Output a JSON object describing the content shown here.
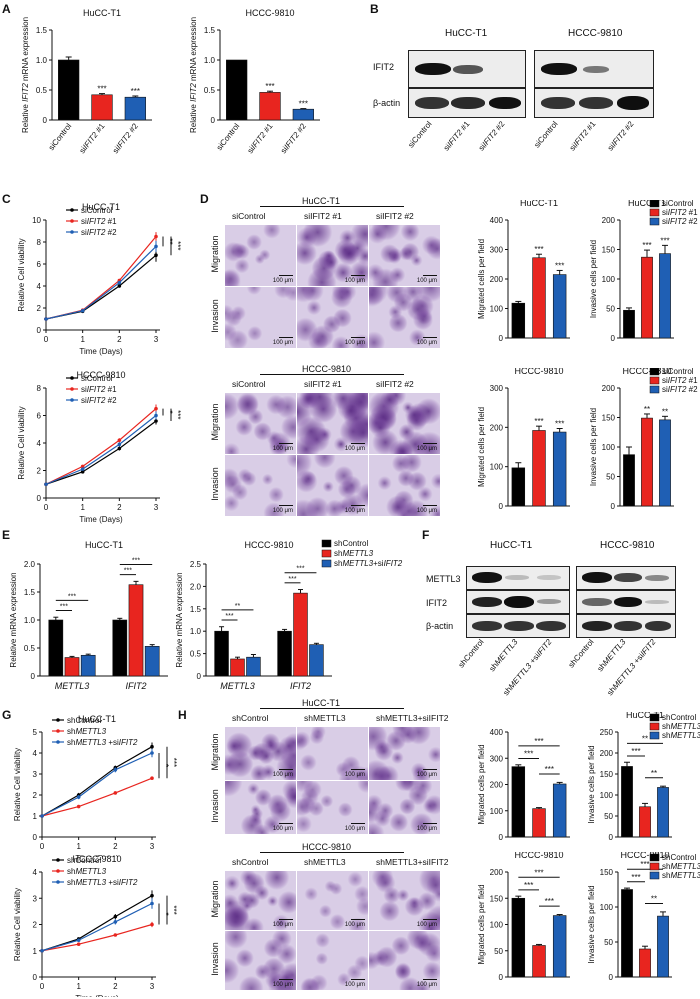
{
  "colors": {
    "black": "#000000",
    "red": "#e8251f",
    "blue": "#1f5fb4",
    "purple": "#6a3d9a"
  },
  "panel_letters": [
    "A",
    "B",
    "C",
    "D",
    "E",
    "F",
    "G",
    "H"
  ],
  "si_groups": {
    "control": "siControl",
    "si1": "siIFIT2 #1",
    "si2": "siIFIT2 #2"
  },
  "sh_groups": {
    "control": "shControl",
    "sh": "shMETTL3",
    "combo": "shMETTL3+siIFIT2"
  },
  "B": {
    "cells": [
      "HuCC-T1",
      "HCCC-9810"
    ],
    "rows": [
      "IFIT2",
      "β-actin"
    ],
    "lanes": [
      "siControl",
      "siIFIT2 #1",
      "siIFIT2 #2"
    ]
  },
  "F": {
    "cells": [
      "HuCC-T1",
      "HCCC-9810"
    ],
    "rows": [
      "METTL3",
      "IFIT2",
      "β-actin"
    ],
    "lanes": [
      "shControl",
      "shMETTL3",
      "shMETTL3 +siIFIT2"
    ]
  },
  "D": {
    "cells": [
      "HuCC-T1",
      "HCCC-9810"
    ],
    "rows": [
      "Migration",
      "Invasion"
    ],
    "cols": [
      "siControl",
      "siIFIT2 #1",
      "siIFIT2 #2"
    ],
    "scale": "100 μm"
  },
  "H": {
    "cells": [
      "HuCC-T1",
      "HCCC-9810"
    ],
    "rows": [
      "Migration",
      "Invasion"
    ],
    "cols": [
      "shControl",
      "shMETTL3",
      "shMETTL3+siIFIT2"
    ],
    "scale": "100 μm"
  },
  "chart_data": [
    {
      "id": "A1",
      "panel": "A",
      "type": "bar",
      "title": "HuCC-T1",
      "ylabel": "Relative IFIT2 mRNA expression",
      "ylim": [
        0,
        1.5
      ],
      "yticks": [
        0,
        0.5,
        1.0,
        1.5
      ],
      "categories": [
        "siControl",
        "siIFIT2 #1",
        "siIFIT2 #2"
      ],
      "values": [
        1.0,
        0.42,
        0.38
      ],
      "errors": [
        0.05,
        0.02,
        0.02
      ],
      "colors": [
        "#000000",
        "#e8251f",
        "#1f5fb4"
      ],
      "stars": [
        "",
        "***",
        "***"
      ]
    },
    {
      "id": "A2",
      "panel": "A",
      "type": "bar",
      "title": "HCCC-9810",
      "ylabel": "Relative IFIT2 mRNA expression",
      "ylim": [
        0,
        1.5
      ],
      "yticks": [
        0,
        0.5,
        1.0,
        1.5
      ],
      "categories": [
        "siControl",
        "siIFIT2 #1",
        "siIFIT2 #2"
      ],
      "values": [
        1.0,
        0.46,
        0.18
      ],
      "errors": [
        0.0,
        0.02,
        0.01
      ],
      "colors": [
        "#000000",
        "#e8251f",
        "#1f5fb4"
      ],
      "stars": [
        "",
        "***",
        "***"
      ]
    },
    {
      "id": "C1",
      "panel": "C",
      "type": "line",
      "title": "HuCC-T1",
      "xlabel": "Time (Days)",
      "ylabel": "Relative Cell viability",
      "xlim": [
        0,
        3
      ],
      "ylim": [
        0,
        10
      ],
      "xticks": [
        0,
        1,
        2,
        3
      ],
      "yticks": [
        0,
        2,
        4,
        6,
        8,
        10
      ],
      "x": [
        0,
        1,
        2,
        3
      ],
      "series": [
        {
          "name": "siControl",
          "values": [
            1,
            1.7,
            4.0,
            6.8
          ],
          "err": [
            0,
            0.1,
            0.15,
            0.6
          ],
          "color": "#000000"
        },
        {
          "name": "siIFIT2 #1",
          "values": [
            1,
            1.8,
            4.5,
            8.5
          ],
          "err": [
            0,
            0.1,
            0.15,
            0.4
          ],
          "color": "#e8251f"
        },
        {
          "name": "siIFIT2 #2",
          "values": [
            1,
            1.75,
            4.3,
            7.6
          ],
          "err": [
            0,
            0.1,
            0.15,
            0.5
          ],
          "color": "#1f5fb4"
        }
      ],
      "stars": [
        "**",
        "***"
      ]
    },
    {
      "id": "C2",
      "panel": "C",
      "type": "line",
      "title": "HCCC-9810",
      "xlabel": "Time (Days)",
      "ylabel": "Relative Cell viability",
      "xlim": [
        0,
        3
      ],
      "ylim": [
        0,
        8
      ],
      "xticks": [
        0,
        1,
        2,
        3
      ],
      "yticks": [
        0,
        2,
        4,
        6,
        8
      ],
      "x": [
        0,
        1,
        2,
        3
      ],
      "series": [
        {
          "name": "siControl",
          "values": [
            1,
            1.9,
            3.6,
            5.6
          ],
          "err": [
            0,
            0.1,
            0.15,
            0.25
          ],
          "color": "#000000"
        },
        {
          "name": "siIFIT2 #1",
          "values": [
            1,
            2.3,
            4.2,
            6.5
          ],
          "err": [
            0,
            0.1,
            0.15,
            0.3
          ],
          "color": "#e8251f"
        },
        {
          "name": "siIFIT2 #2",
          "values": [
            1,
            2.1,
            3.9,
            6.0
          ],
          "err": [
            0,
            0.1,
            0.15,
            0.3
          ],
          "color": "#1f5fb4"
        }
      ],
      "stars": [
        "*",
        "***"
      ]
    },
    {
      "id": "D1",
      "panel": "D",
      "type": "bar",
      "title": "HuCC-T1",
      "ylabel": "Migrated cells per field",
      "ylim": [
        0,
        400
      ],
      "yticks": [
        0,
        100,
        200,
        300,
        400
      ],
      "categories": [
        "siControl",
        "siIFIT2 #1",
        "siIFIT2 #2"
      ],
      "values": [
        118,
        272,
        215
      ],
      "errors": [
        6,
        12,
        14
      ],
      "colors": [
        "#000000",
        "#e8251f",
        "#1f5fb4"
      ],
      "stars": [
        "",
        "***",
        "***"
      ]
    },
    {
      "id": "D2",
      "panel": "D",
      "type": "bar",
      "title": "HuCC-T1",
      "ylabel": "Invasive cells per field",
      "ylim": [
        0,
        200
      ],
      "yticks": [
        0,
        50,
        100,
        150,
        200
      ],
      "categories": [
        "siControl",
        "siIFIT2 #1",
        "siIFIT2 #2"
      ],
      "values": [
        47,
        137,
        143
      ],
      "errors": [
        4,
        12,
        14
      ],
      "colors": [
        "#000000",
        "#e8251f",
        "#1f5fb4"
      ],
      "stars": [
        "",
        "***",
        "***"
      ],
      "legend": [
        "siControl",
        "siIFIT2 #1",
        "siIFIT2 #2"
      ]
    },
    {
      "id": "D3",
      "panel": "D",
      "type": "bar",
      "title": "HCCC-9810",
      "ylabel": "Migrated cells per field",
      "ylim": [
        0,
        300
      ],
      "yticks": [
        0,
        100,
        200,
        300
      ],
      "categories": [
        "siControl",
        "siIFIT2 #1",
        "siIFIT2 #2"
      ],
      "values": [
        97,
        192,
        188
      ],
      "errors": [
        13,
        11,
        9
      ],
      "colors": [
        "#000000",
        "#e8251f",
        "#1f5fb4"
      ],
      "stars": [
        "",
        "***",
        "***"
      ]
    },
    {
      "id": "D4",
      "panel": "D",
      "type": "bar",
      "title": "HCCC-9810",
      "ylabel": "Invasive cells per field",
      "ylim": [
        0,
        200
      ],
      "yticks": [
        0,
        50,
        100,
        150,
        200
      ],
      "categories": [
        "siControl",
        "siIFIT2 #1",
        "siIFIT2 #2"
      ],
      "values": [
        87,
        149,
        146
      ],
      "errors": [
        13,
        7,
        6
      ],
      "colors": [
        "#000000",
        "#e8251f",
        "#1f5fb4"
      ],
      "stars": [
        "",
        "**",
        "**"
      ],
      "legend": [
        "siControl",
        "siIFIT2 #1",
        "siIFIT2 #2"
      ]
    },
    {
      "id": "E1",
      "panel": "E",
      "type": "bar",
      "title": "HuCC-T1",
      "ylabel": "Relative mRNA expression",
      "ylim": [
        0,
        2.0
      ],
      "yticks": [
        0,
        0.5,
        1.0,
        1.5,
        2.0
      ],
      "categories": [
        "METTL3",
        "IFIT2"
      ],
      "series": [
        {
          "name": "shControl",
          "values": [
            1.0,
            1.0
          ],
          "err": [
            0.05,
            0.03
          ],
          "color": "#000000"
        },
        {
          "name": "shMETTL3",
          "values": [
            0.33,
            1.63
          ],
          "err": [
            0.02,
            0.06
          ],
          "color": "#e8251f"
        },
        {
          "name": "shMETTL3+siIFIT2",
          "values": [
            0.37,
            0.53
          ],
          "err": [
            0.02,
            0.03
          ],
          "color": "#1f5fb4"
        }
      ],
      "brackets": [
        "***",
        "***",
        "***",
        "***"
      ]
    },
    {
      "id": "E2",
      "panel": "E",
      "type": "bar",
      "title": "HCCC-9810",
      "ylabel": "Relative mRNA expression",
      "ylim": [
        0,
        2.5
      ],
      "yticks": [
        0,
        0.5,
        1.0,
        1.5,
        2.0,
        2.5
      ],
      "categories": [
        "METTL3",
        "IFIT2"
      ],
      "series": [
        {
          "name": "shControl",
          "values": [
            1.0,
            1.0
          ],
          "err": [
            0.1,
            0.04
          ],
          "color": "#000000"
        },
        {
          "name": "shMETTL3",
          "values": [
            0.38,
            1.85
          ],
          "err": [
            0.04,
            0.08
          ],
          "color": "#e8251f"
        },
        {
          "name": "shMETTL3+siIFIT2",
          "values": [
            0.42,
            0.7
          ],
          "err": [
            0.06,
            0.03
          ],
          "color": "#1f5fb4"
        }
      ],
      "brackets": [
        "***",
        "**",
        "***",
        "***"
      ],
      "legend": [
        "shControl",
        "shMETTL3",
        "shMETTL3+siIFIT2"
      ]
    },
    {
      "id": "G1",
      "panel": "G",
      "type": "line",
      "title": "HuCC-T1",
      "xlabel": "Time (Days)",
      "ylabel": "Relative Cell viability",
      "xlim": [
        0,
        3
      ],
      "ylim": [
        0,
        5
      ],
      "xticks": [
        0,
        1,
        2,
        3
      ],
      "yticks": [
        0,
        1,
        2,
        3,
        4,
        5
      ],
      "x": [
        0,
        1,
        2,
        3
      ],
      "series": [
        {
          "name": "shControl",
          "values": [
            1,
            2.0,
            3.3,
            4.3
          ],
          "err": [
            0,
            0.1,
            0.1,
            0.2
          ],
          "color": "#000000"
        },
        {
          "name": "shMETTL3",
          "values": [
            1,
            1.45,
            2.1,
            2.8
          ],
          "err": [
            0,
            0.05,
            0.05,
            0.08
          ],
          "color": "#e8251f"
        },
        {
          "name": "shMETTL3 +siIFIT2",
          "values": [
            1,
            1.9,
            3.2,
            4.0
          ],
          "err": [
            0,
            0.1,
            0.12,
            0.2
          ],
          "color": "#1f5fb4"
        }
      ],
      "stars": [
        "*",
        "***"
      ]
    },
    {
      "id": "G2",
      "panel": "G",
      "type": "line",
      "title": "HCCC-9810",
      "xlabel": "Time (Days)",
      "ylabel": "Relative Cell viability",
      "xlim": [
        0,
        3
      ],
      "ylim": [
        0,
        4
      ],
      "xticks": [
        0,
        1,
        2,
        3
      ],
      "yticks": [
        0,
        1,
        2,
        3,
        4
      ],
      "x": [
        0,
        1,
        2,
        3
      ],
      "series": [
        {
          "name": "shControl",
          "values": [
            1,
            1.45,
            2.3,
            3.1
          ],
          "err": [
            0,
            0.05,
            0.1,
            0.2
          ],
          "color": "#000000"
        },
        {
          "name": "shMETTL3",
          "values": [
            1,
            1.25,
            1.6,
            2.0
          ],
          "err": [
            0,
            0.05,
            0.05,
            0.1
          ],
          "color": "#e8251f"
        },
        {
          "name": "shMETTL3 +siIFIT2",
          "values": [
            1,
            1.4,
            2.1,
            2.8
          ],
          "err": [
            0,
            0.05,
            0.1,
            0.2
          ],
          "color": "#1f5fb4"
        }
      ],
      "stars": [
        "*",
        "***"
      ]
    },
    {
      "id": "H1",
      "panel": "H",
      "type": "bar",
      "title": "",
      "ylabel": "Migrated cells per field",
      "ylim": [
        0,
        400
      ],
      "yticks": [
        0,
        100,
        200,
        300,
        400
      ],
      "categories": [
        "shControl",
        "shMETTL3",
        "shMETTL3+siIFIT2"
      ],
      "values": [
        268,
        108,
        202
      ],
      "errors": [
        7,
        4,
        6
      ],
      "colors": [
        "#000000",
        "#e8251f",
        "#1f5fb4"
      ],
      "brackets": [
        "***",
        "***",
        "***"
      ]
    },
    {
      "id": "H2",
      "panel": "H",
      "type": "bar",
      "title": "HuCC-T1",
      "ylabel": "Invasive cells per field",
      "ylim": [
        0,
        250
      ],
      "yticks": [
        0,
        50,
        100,
        150,
        200,
        250
      ],
      "categories": [
        "shControl",
        "shMETTL3",
        "shMETTL3+siIFIT2"
      ],
      "values": [
        168,
        72,
        118
      ],
      "errors": [
        10,
        8,
        3
      ],
      "colors": [
        "#000000",
        "#e8251f",
        "#1f5fb4"
      ],
      "brackets": [
        "***",
        "**",
        "**"
      ],
      "legend": [
        "shControl",
        "shMETTL3",
        "shMETTL3 +siIFIT2"
      ]
    },
    {
      "id": "H3",
      "panel": "H",
      "type": "bar",
      "title": "HCCC-9810",
      "ylabel": "Migrated cells per field",
      "ylim": [
        0,
        200
      ],
      "yticks": [
        0,
        50,
        100,
        150,
        200
      ],
      "categories": [
        "shControl",
        "shMETTL3",
        "shMETTL3+siIFIT2"
      ],
      "values": [
        150,
        60,
        117
      ],
      "errors": [
        4,
        2,
        2
      ],
      "colors": [
        "#000000",
        "#e8251f",
        "#1f5fb4"
      ],
      "brackets": [
        "***",
        "***",
        "***"
      ]
    },
    {
      "id": "H4",
      "panel": "H",
      "type": "bar",
      "title": "HCCC-9810",
      "ylabel": "Invasive cells per field",
      "ylim": [
        0,
        150
      ],
      "yticks": [
        0,
        50,
        100,
        150
      ],
      "categories": [
        "shControl",
        "shMETTL3",
        "shMETTL3+siIFIT2"
      ],
      "values": [
        125,
        40,
        87
      ],
      "errors": [
        2,
        4,
        6
      ],
      "colors": [
        "#000000",
        "#e8251f",
        "#1f5fb4"
      ],
      "brackets": [
        "***",
        "**",
        "***"
      ],
      "legend": [
        "shControl",
        "shMETTL3",
        "shMETTL3 +siIFIT2"
      ]
    }
  ]
}
